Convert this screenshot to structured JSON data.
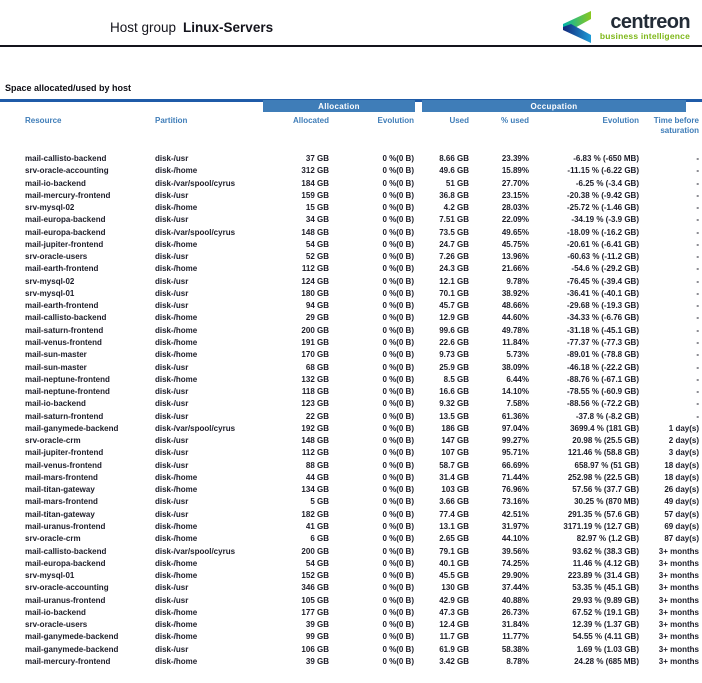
{
  "header": {
    "title_prefix": "Host group",
    "title_group": "Linux-Servers",
    "logo_name": "centreon",
    "logo_tagline": "business intelligence"
  },
  "section": {
    "title": "Space allocated/used by host"
  },
  "colors": {
    "band_blue": "#3f7db8",
    "header_text_blue": "#3f7db8",
    "section_rule_blue": "#1f5ba8",
    "logo_green": "#7db718",
    "logo_teal": "#00b5ad",
    "logo_blue": "#1e9cd7",
    "logo_navy": "#232c37"
  },
  "table": {
    "groups": [
      {
        "label": "Allocation"
      },
      {
        "label": "Occupation"
      }
    ],
    "columns": [
      "Resource",
      "Partition",
      "Allocated",
      "Evolution",
      "Used",
      "% used",
      "Evolution",
      "Time before saturation"
    ],
    "rows": [
      [
        "mail-callisto-backend",
        "disk-/usr",
        "37 GB",
        "0 %(0 B)",
        "8.66 GB",
        "23.39%",
        "-6.83 % (-650 MB)",
        "-"
      ],
      [
        "srv-oracle-accounting",
        "disk-/home",
        "312 GB",
        "0 %(0 B)",
        "49.6 GB",
        "15.89%",
        "-11.15 % (-6.22 GB)",
        "-"
      ],
      [
        "mail-io-backend",
        "disk-/var/spool/cyrus",
        "184 GB",
        "0 %(0 B)",
        "51 GB",
        "27.70%",
        "-6.25 % (-3.4 GB)",
        "-"
      ],
      [
        "mail-mercury-frontend",
        "disk-/usr",
        "159 GB",
        "0 %(0 B)",
        "36.8 GB",
        "23.15%",
        "-20.38 % (-9.42 GB)",
        "-"
      ],
      [
        "srv-mysql-02",
        "disk-/home",
        "15 GB",
        "0 %(0 B)",
        "4.2 GB",
        "28.03%",
        "-25.72 % (-1.46 GB)",
        "-"
      ],
      [
        "mail-europa-backend",
        "disk-/usr",
        "34 GB",
        "0 %(0 B)",
        "7.51 GB",
        "22.09%",
        "-34.19 % (-3.9 GB)",
        "-"
      ],
      [
        "mail-europa-backend",
        "disk-/var/spool/cyrus",
        "148 GB",
        "0 %(0 B)",
        "73.5 GB",
        "49.65%",
        "-18.09 % (-16.2 GB)",
        "-"
      ],
      [
        "mail-jupiter-frontend",
        "disk-/home",
        "54 GB",
        "0 %(0 B)",
        "24.7 GB",
        "45.75%",
        "-20.61 % (-6.41 GB)",
        "-"
      ],
      [
        "srv-oracle-users",
        "disk-/usr",
        "52 GB",
        "0 %(0 B)",
        "7.26 GB",
        "13.96%",
        "-60.63 % (-11.2 GB)",
        "-"
      ],
      [
        "mail-earth-frontend",
        "disk-/home",
        "112 GB",
        "0 %(0 B)",
        "24.3 GB",
        "21.66%",
        "-54.6 % (-29.2 GB)",
        "-"
      ],
      [
        "srv-mysql-02",
        "disk-/usr",
        "124 GB",
        "0 %(0 B)",
        "12.1 GB",
        "9.78%",
        "-76.45 % (-39.4 GB)",
        "-"
      ],
      [
        "srv-mysql-01",
        "disk-/usr",
        "180 GB",
        "0 %(0 B)",
        "70.1 GB",
        "38.92%",
        "-36.41 % (-40.1 GB)",
        "-"
      ],
      [
        "mail-earth-frontend",
        "disk-/usr",
        "94 GB",
        "0 %(0 B)",
        "45.7 GB",
        "48.66%",
        "-29.68 % (-19.3 GB)",
        "-"
      ],
      [
        "mail-callisto-backend",
        "disk-/home",
        "29 GB",
        "0 %(0 B)",
        "12.9 GB",
        "44.60%",
        "-34.33 % (-6.76 GB)",
        "-"
      ],
      [
        "mail-saturn-frontend",
        "disk-/home",
        "200 GB",
        "0 %(0 B)",
        "99.6 GB",
        "49.78%",
        "-31.18 % (-45.1 GB)",
        "-"
      ],
      [
        "mail-venus-frontend",
        "disk-/home",
        "191 GB",
        "0 %(0 B)",
        "22.6 GB",
        "11.84%",
        "-77.37 % (-77.3 GB)",
        "-"
      ],
      [
        "mail-sun-master",
        "disk-/home",
        "170 GB",
        "0 %(0 B)",
        "9.73 GB",
        "5.73%",
        "-89.01 % (-78.8 GB)",
        "-"
      ],
      [
        "mail-sun-master",
        "disk-/usr",
        "68 GB",
        "0 %(0 B)",
        "25.9 GB",
        "38.09%",
        "-46.18 % (-22.2 GB)",
        "-"
      ],
      [
        "mail-neptune-frontend",
        "disk-/home",
        "132 GB",
        "0 %(0 B)",
        "8.5 GB",
        "6.44%",
        "-88.76 % (-67.1 GB)",
        "-"
      ],
      [
        "mail-neptune-frontend",
        "disk-/usr",
        "118 GB",
        "0 %(0 B)",
        "16.6 GB",
        "14.10%",
        "-78.55 % (-60.9 GB)",
        "-"
      ],
      [
        "mail-io-backend",
        "disk-/usr",
        "123 GB",
        "0 %(0 B)",
        "9.32 GB",
        "7.58%",
        "-88.56 % (-72.2 GB)",
        "-"
      ],
      [
        "mail-saturn-frontend",
        "disk-/usr",
        "22 GB",
        "0 %(0 B)",
        "13.5 GB",
        "61.36%",
        "-37.8 % (-8.2 GB)",
        "-"
      ],
      [
        "mail-ganymede-backend",
        "disk-/var/spool/cyrus",
        "192 GB",
        "0 %(0 B)",
        "186 GB",
        "97.04%",
        "3699.4 % (181 GB)",
        "1 day(s)"
      ],
      [
        "srv-oracle-crm",
        "disk-/usr",
        "148 GB",
        "0 %(0 B)",
        "147 GB",
        "99.27%",
        "20.98 % (25.5 GB)",
        "2 day(s)"
      ],
      [
        "mail-jupiter-frontend",
        "disk-/usr",
        "112 GB",
        "0 %(0 B)",
        "107 GB",
        "95.71%",
        "121.46 % (58.8 GB)",
        "3 day(s)"
      ],
      [
        "mail-venus-frontend",
        "disk-/usr",
        "88 GB",
        "0 %(0 B)",
        "58.7 GB",
        "66.69%",
        "658.97 % (51 GB)",
        "18 day(s)"
      ],
      [
        "mail-mars-frontend",
        "disk-/home",
        "44 GB",
        "0 %(0 B)",
        "31.4 GB",
        "71.44%",
        "252.98 % (22.5 GB)",
        "18 day(s)"
      ],
      [
        "mail-titan-gateway",
        "disk-/home",
        "134 GB",
        "0 %(0 B)",
        "103 GB",
        "76.96%",
        "57.56 % (37.7 GB)",
        "26 day(s)"
      ],
      [
        "mail-mars-frontend",
        "disk-/usr",
        "5 GB",
        "0 %(0 B)",
        "3.66 GB",
        "73.16%",
        "30.25 % (870 MB)",
        "49 day(s)"
      ],
      [
        "mail-titan-gateway",
        "disk-/usr",
        "182 GB",
        "0 %(0 B)",
        "77.4 GB",
        "42.51%",
        "291.35 % (57.6 GB)",
        "57 day(s)"
      ],
      [
        "mail-uranus-frontend",
        "disk-/home",
        "41 GB",
        "0 %(0 B)",
        "13.1 GB",
        "31.97%",
        "3171.19 % (12.7 GB)",
        "69 day(s)"
      ],
      [
        "srv-oracle-crm",
        "disk-/home",
        "6 GB",
        "0 %(0 B)",
        "2.65 GB",
        "44.10%",
        "82.97 % (1.2 GB)",
        "87 day(s)"
      ],
      [
        "mail-callisto-backend",
        "disk-/var/spool/cyrus",
        "200 GB",
        "0 %(0 B)",
        "79.1 GB",
        "39.56%",
        "93.62 % (38.3 GB)",
        "3+ months"
      ],
      [
        "mail-europa-backend",
        "disk-/home",
        "54 GB",
        "0 %(0 B)",
        "40.1 GB",
        "74.25%",
        "11.46 % (4.12 GB)",
        "3+ months"
      ],
      [
        "srv-mysql-01",
        "disk-/home",
        "152 GB",
        "0 %(0 B)",
        "45.5 GB",
        "29.90%",
        "223.89 % (31.4 GB)",
        "3+ months"
      ],
      [
        "srv-oracle-accounting",
        "disk-/usr",
        "346 GB",
        "0 %(0 B)",
        "130 GB",
        "37.44%",
        "53.35 % (45.1 GB)",
        "3+ months"
      ],
      [
        "mail-uranus-frontend",
        "disk-/usr",
        "105 GB",
        "0 %(0 B)",
        "42.9 GB",
        "40.88%",
        "29.93 % (9.89 GB)",
        "3+ months"
      ],
      [
        "mail-io-backend",
        "disk-/home",
        "177 GB",
        "0 %(0 B)",
        "47.3 GB",
        "26.73%",
        "67.52 % (19.1 GB)",
        "3+ months"
      ],
      [
        "srv-oracle-users",
        "disk-/home",
        "39 GB",
        "0 %(0 B)",
        "12.4 GB",
        "31.84%",
        "12.39 % (1.37 GB)",
        "3+ months"
      ],
      [
        "mail-ganymede-backend",
        "disk-/home",
        "99 GB",
        "0 %(0 B)",
        "11.7 GB",
        "11.77%",
        "54.55 % (4.11 GB)",
        "3+ months"
      ],
      [
        "mail-ganymede-backend",
        "disk-/usr",
        "106 GB",
        "0 %(0 B)",
        "61.9 GB",
        "58.38%",
        "1.69 % (1.03 GB)",
        "3+ months"
      ],
      [
        "mail-mercury-frontend",
        "disk-/home",
        "39 GB",
        "0 %(0 B)",
        "3.42 GB",
        "8.78%",
        "24.28 % (685 MB)",
        "3+ months"
      ]
    ]
  }
}
